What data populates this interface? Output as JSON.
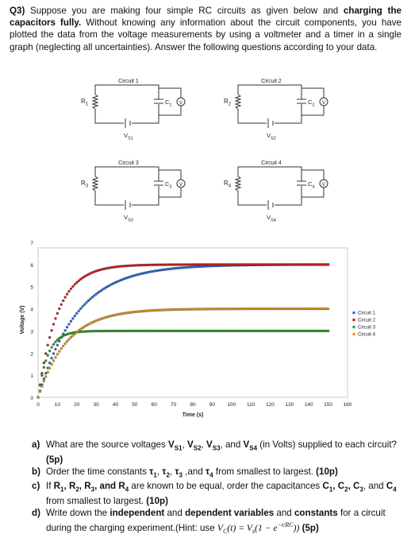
{
  "question": {
    "number": "Q3)",
    "intro_part1": "Suppose you are making four simple RC circuits as given below and",
    "intro_bold": "charging the capacitors fully.",
    "intro_part2": "Without knowing any information about the circuit components, you have plotted the data from the voltage measurements by using a voltmeter and a timer in a single graph (neglecting all uncertainties). Answer the following questions according to your data."
  },
  "circuits": [
    {
      "title": "Circuit 1",
      "resistor": "R",
      "resistor_sub": "1",
      "capacitor": "C",
      "capacitor_sub": "1",
      "meter": "V",
      "source": "V",
      "source_sub": "S1"
    },
    {
      "title": "Circuit 2",
      "resistor": "R",
      "resistor_sub": "2",
      "capacitor": "C",
      "capacitor_sub": "2",
      "meter": "V",
      "source": "V",
      "source_sub": "S2"
    },
    {
      "title": "Circuit 3",
      "resistor": "R",
      "resistor_sub": "3",
      "capacitor": "C",
      "capacitor_sub": "3",
      "meter": "V",
      "source": "V",
      "source_sub": "S3"
    },
    {
      "title": "Circuit 4",
      "resistor": "R",
      "resistor_sub": "4",
      "capacitor": "C",
      "capacitor_sub": "4",
      "meter": "V",
      "source": "V",
      "source_sub": "S4"
    }
  ],
  "chart_data": {
    "type": "scatter",
    "title": "",
    "xlabel": "Time (s)",
    "ylabel": "Voltage (V)",
    "xlim": [
      0,
      160
    ],
    "ylim": [
      0,
      7
    ],
    "xticks": [
      0,
      10,
      20,
      30,
      40,
      50,
      60,
      70,
      80,
      90,
      100,
      110,
      120,
      130,
      140,
      150,
      160
    ],
    "yticks": [
      0,
      1,
      2,
      3,
      4,
      5,
      6,
      7
    ],
    "grid": false,
    "legend_position": "right",
    "series": [
      {
        "name": "Circuit 1",
        "color": "#2f6fd6",
        "vs": 6,
        "tau": 20,
        "x_range": [
          0,
          150
        ]
      },
      {
        "name": "Circuit 2",
        "color": "#d02020",
        "vs": 6,
        "tau": 10,
        "x_range": [
          0,
          150
        ]
      },
      {
        "name": "Circuit 3",
        "color": "#2ca02c",
        "vs": 3,
        "tau": 5,
        "x_range": [
          0,
          150
        ]
      },
      {
        "name": "Circuit 4",
        "color": "#e0a020",
        "vs": 4,
        "tau": 15,
        "x_range": [
          0,
          150
        ]
      }
    ]
  },
  "questions": [
    {
      "label": "a)",
      "segments": [
        {
          "t": "What are the source voltages "
        },
        {
          "t": "V",
          "b": true
        },
        {
          "t": "S1",
          "b": true,
          "sub": true
        },
        {
          "t": ", "
        },
        {
          "t": "V",
          "b": true
        },
        {
          "t": "S2",
          "b": true,
          "sub": true
        },
        {
          "t": ", "
        },
        {
          "t": "V",
          "b": true
        },
        {
          "t": "S3",
          "b": true,
          "sub": true
        },
        {
          "t": ", and "
        },
        {
          "t": "V",
          "b": true
        },
        {
          "t": "S4",
          "b": true,
          "sub": true
        },
        {
          "t": " (in Volts) supplied to each circuit? "
        },
        {
          "t": "(5p)",
          "b": true
        }
      ]
    },
    {
      "label": "b)",
      "segments": [
        {
          "t": "Order the time constants "
        },
        {
          "t": "τ",
          "b": true
        },
        {
          "t": "1",
          "b": true,
          "sub": true
        },
        {
          "t": ", "
        },
        {
          "t": "τ",
          "b": true
        },
        {
          "t": "2",
          "b": true,
          "sub": true
        },
        {
          "t": ", "
        },
        {
          "t": "τ",
          "b": true
        },
        {
          "t": "3",
          "b": true,
          "sub": true
        },
        {
          "t": " ,and "
        },
        {
          "t": "τ",
          "b": true
        },
        {
          "t": "4",
          "b": true,
          "sub": true
        },
        {
          "t": " from smallest to largest. "
        },
        {
          "t": "(10p)",
          "b": true
        }
      ]
    },
    {
      "label": "c)",
      "segments": [
        {
          "t": "If "
        },
        {
          "t": "R",
          "b": true
        },
        {
          "t": "1",
          "b": true,
          "sub": true
        },
        {
          "t": ", ",
          "b": true
        },
        {
          "t": "R",
          "b": true
        },
        {
          "t": "2",
          "b": true,
          "sub": true
        },
        {
          "t": ", ",
          "b": true
        },
        {
          "t": "R",
          "b": true
        },
        {
          "t": "3",
          "b": true,
          "sub": true
        },
        {
          "t": ", and ",
          "b": true
        },
        {
          "t": "R",
          "b": true
        },
        {
          "t": "4",
          "b": true,
          "sub": true
        },
        {
          "t": " are known to be equal, order the capacitances "
        },
        {
          "t": "C",
          "b": true
        },
        {
          "t": "1",
          "b": true,
          "sub": true
        },
        {
          "t": ", ",
          "b": true
        },
        {
          "t": "C",
          "b": true
        },
        {
          "t": "2",
          "b": true,
          "sub": true
        },
        {
          "t": ", ",
          "b": true
        },
        {
          "t": "C",
          "b": true
        },
        {
          "t": "3",
          "b": true,
          "sub": true
        },
        {
          "t": ", and "
        },
        {
          "t": "C",
          "b": true
        },
        {
          "t": "4",
          "b": true,
          "sub": true
        },
        {
          "t": " from smallest to largest. "
        },
        {
          "t": "(10p)",
          "b": true
        }
      ]
    },
    {
      "label": "d)",
      "segments": [
        {
          "t": "Write down the "
        },
        {
          "t": "independent",
          "b": true
        },
        {
          "t": " and "
        },
        {
          "t": "dependent variables",
          "b": true
        },
        {
          "t": " and "
        },
        {
          "t": "constants",
          "b": true
        },
        {
          "t": " for a circuit during the charging experiment.(Hint: use "
        },
        {
          "t": "V",
          "i": true
        },
        {
          "t": "C",
          "i": true,
          "sub": true
        },
        {
          "t": "(",
          "i": true
        },
        {
          "t": "t",
          "i": true
        },
        {
          "t": ") = ",
          "i": true
        },
        {
          "t": "V",
          "i": true
        },
        {
          "t": "s",
          "i": true,
          "sub": true
        },
        {
          "t": "(1 − ",
          "i": true
        },
        {
          "t": "e",
          "i": true
        },
        {
          "t": "−t/RC",
          "i": true,
          "sup": true
        },
        {
          "t": "))",
          "i": true
        },
        {
          "t": " (5p)",
          "b": true
        }
      ]
    }
  ]
}
